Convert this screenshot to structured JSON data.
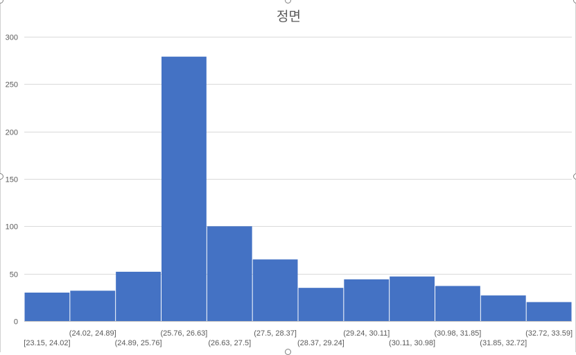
{
  "chart_data": {
    "type": "bar",
    "title": "정면",
    "xlabel": "",
    "ylabel": "",
    "categories": [
      "[23.15, 24.02]",
      "(24.02, 24.89]",
      "(24.89, 25.76]",
      "(25.76, 26.63]",
      "(26.63, 27.5]",
      "(27.5, 28.37]",
      "(28.37, 29.24]",
      "(29.24, 30.11]",
      "(30.11, 30.98]",
      "(30.98, 31.85]",
      "(31.85, 32.72]",
      "(32.72, 33.59]"
    ],
    "values": [
      30,
      32,
      52,
      279,
      100,
      65,
      35,
      44,
      47,
      37,
      27,
      20
    ],
    "ylim": [
      0,
      300
    ],
    "yticks": [
      "0",
      "50",
      "100",
      "150",
      "200",
      "250",
      "300"
    ],
    "grid": true,
    "legend": "none",
    "bar_color": "#4472C4",
    "gridline_color": "#D9D9D9",
    "text_color": "#595959"
  }
}
